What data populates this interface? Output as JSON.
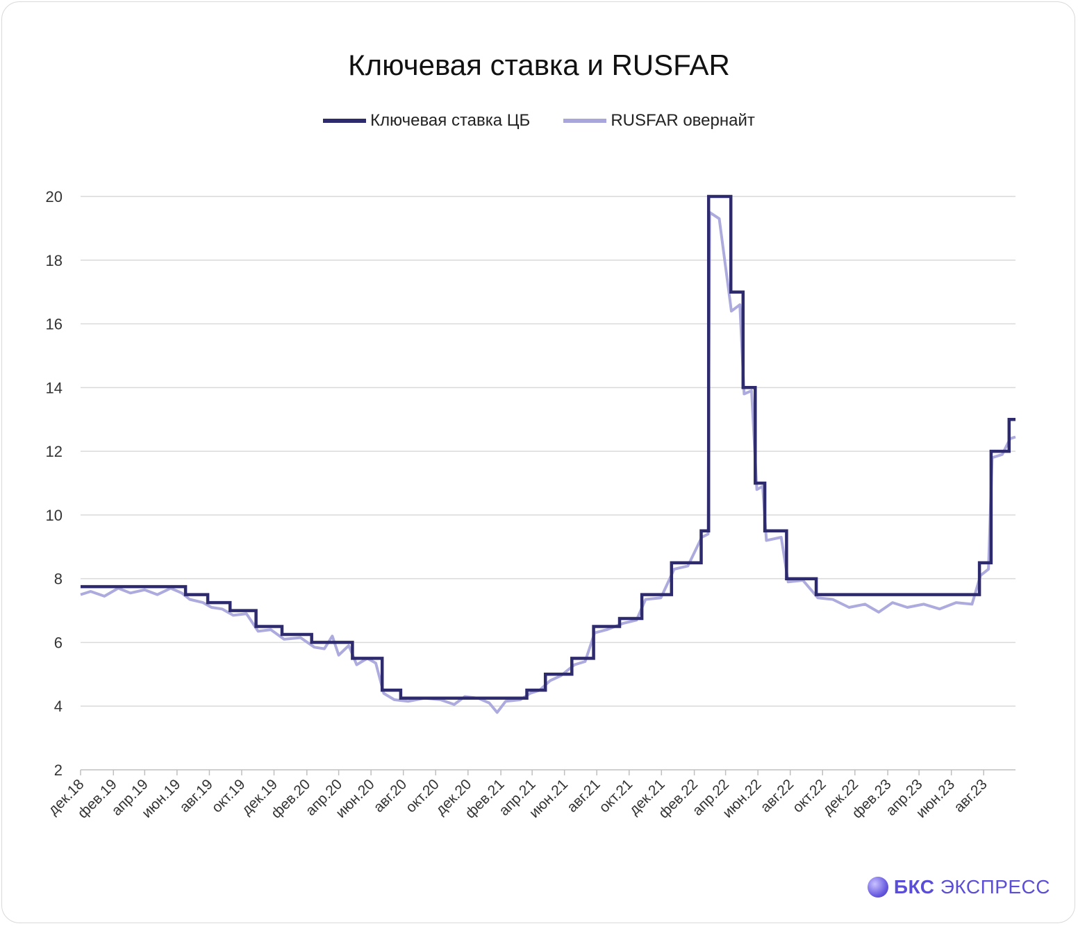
{
  "brand": {
    "bold": "БКС",
    "rest": " ЭКСПРЕСС"
  },
  "chart_data": {
    "type": "line",
    "title": "Ключевая ставка и RUSFAR",
    "ylim": [
      2,
      20
    ],
    "yticks": [
      2,
      4,
      6,
      8,
      10,
      12,
      14,
      16,
      18,
      20
    ],
    "grid": true,
    "legend_position": "top",
    "x_range": [
      "2018-12-01",
      "2023-09-30"
    ],
    "x_tick_labels": [
      "дек.18",
      "фев.19",
      "апр.19",
      "июн.19",
      "авг.19",
      "окт.19",
      "дек.19",
      "фев.20",
      "апр.20",
      "июн.20",
      "авг.20",
      "окт.20",
      "дек.20",
      "фев.21",
      "апр.21",
      "июн.21",
      "авг.21",
      "окт.21",
      "дек.21",
      "фев.22",
      "апр.22",
      "июн.22",
      "авг.22",
      "окт.22",
      "дек.22",
      "фев.23",
      "апр.23",
      "июн.23",
      "авг.23"
    ],
    "series": [
      {
        "name": "Ключевая ставка ЦБ",
        "color": "#2e2a6e",
        "points": [
          [
            "2018-12-01",
            7.75
          ],
          [
            "2019-06-17",
            7.5
          ],
          [
            "2019-07-29",
            7.25
          ],
          [
            "2019-09-09",
            7.0
          ],
          [
            "2019-10-28",
            6.5
          ],
          [
            "2019-12-16",
            6.25
          ],
          [
            "2020-02-10",
            6.0
          ],
          [
            "2020-04-27",
            5.5
          ],
          [
            "2020-06-22",
            4.5
          ],
          [
            "2020-07-27",
            4.25
          ],
          [
            "2021-03-22",
            4.5
          ],
          [
            "2021-04-26",
            5.0
          ],
          [
            "2021-06-15",
            5.5
          ],
          [
            "2021-07-26",
            6.5
          ],
          [
            "2021-09-13",
            6.75
          ],
          [
            "2021-10-25",
            7.5
          ],
          [
            "2021-12-20",
            8.5
          ],
          [
            "2022-02-14",
            9.5
          ],
          [
            "2022-02-28",
            20.0
          ],
          [
            "2022-04-11",
            17.0
          ],
          [
            "2022-05-04",
            14.0
          ],
          [
            "2022-05-27",
            11.0
          ],
          [
            "2022-06-14",
            9.5
          ],
          [
            "2022-07-25",
            8.0
          ],
          [
            "2022-09-19",
            7.5
          ],
          [
            "2023-07-24",
            8.5
          ],
          [
            "2023-08-15",
            12.0
          ],
          [
            "2023-09-18",
            13.0
          ],
          [
            "2023-09-30",
            13.0
          ]
        ]
      },
      {
        "name": "RUSFAR овернайт",
        "color": "#a9a6dc",
        "points": [
          [
            "2018-12-01",
            7.5
          ],
          [
            "2018-12-20",
            7.6
          ],
          [
            "2019-01-15",
            7.45
          ],
          [
            "2019-02-10",
            7.7
          ],
          [
            "2019-03-05",
            7.55
          ],
          [
            "2019-04-01",
            7.65
          ],
          [
            "2019-04-25",
            7.5
          ],
          [
            "2019-05-20",
            7.7
          ],
          [
            "2019-06-10",
            7.55
          ],
          [
            "2019-06-25",
            7.35
          ],
          [
            "2019-07-20",
            7.25
          ],
          [
            "2019-08-05",
            7.1
          ],
          [
            "2019-08-25",
            7.05
          ],
          [
            "2019-09-15",
            6.85
          ],
          [
            "2019-10-10",
            6.9
          ],
          [
            "2019-11-01",
            6.35
          ],
          [
            "2019-11-25",
            6.4
          ],
          [
            "2019-12-20",
            6.1
          ],
          [
            "2020-01-20",
            6.15
          ],
          [
            "2020-02-15",
            5.85
          ],
          [
            "2020-03-05",
            5.8
          ],
          [
            "2020-03-20",
            6.2
          ],
          [
            "2020-04-01",
            5.6
          ],
          [
            "2020-04-20",
            5.9
          ],
          [
            "2020-05-05",
            5.3
          ],
          [
            "2020-05-25",
            5.5
          ],
          [
            "2020-06-10",
            5.35
          ],
          [
            "2020-06-25",
            4.4
          ],
          [
            "2020-07-15",
            4.2
          ],
          [
            "2020-08-10",
            4.15
          ],
          [
            "2020-09-10",
            4.25
          ],
          [
            "2020-10-10",
            4.2
          ],
          [
            "2020-11-05",
            4.05
          ],
          [
            "2020-11-25",
            4.3
          ],
          [
            "2020-12-20",
            4.25
          ],
          [
            "2021-01-10",
            4.1
          ],
          [
            "2021-01-25",
            3.8
          ],
          [
            "2021-02-10",
            4.15
          ],
          [
            "2021-03-10",
            4.2
          ],
          [
            "2021-03-28",
            4.4
          ],
          [
            "2021-04-15",
            4.5
          ],
          [
            "2021-05-05",
            4.8
          ],
          [
            "2021-05-25",
            4.95
          ],
          [
            "2021-06-20",
            5.3
          ],
          [
            "2021-07-10",
            5.4
          ],
          [
            "2021-07-28",
            6.3
          ],
          [
            "2021-08-20",
            6.4
          ],
          [
            "2021-09-20",
            6.6
          ],
          [
            "2021-10-15",
            6.7
          ],
          [
            "2021-11-01",
            7.35
          ],
          [
            "2021-11-30",
            7.4
          ],
          [
            "2021-12-25",
            8.3
          ],
          [
            "2022-01-20",
            8.4
          ],
          [
            "2022-02-15",
            9.3
          ],
          [
            "2022-02-27",
            9.4
          ],
          [
            "2022-03-02",
            19.5
          ],
          [
            "2022-03-20",
            19.3
          ],
          [
            "2022-04-12",
            16.4
          ],
          [
            "2022-04-28",
            16.6
          ],
          [
            "2022-05-06",
            13.8
          ],
          [
            "2022-05-20",
            13.9
          ],
          [
            "2022-05-30",
            10.8
          ],
          [
            "2022-06-10",
            10.9
          ],
          [
            "2022-06-17",
            9.2
          ],
          [
            "2022-07-15",
            9.3
          ],
          [
            "2022-07-28",
            7.9
          ],
          [
            "2022-08-25",
            7.95
          ],
          [
            "2022-09-22",
            7.4
          ],
          [
            "2022-10-20",
            7.35
          ],
          [
            "2022-11-20",
            7.1
          ],
          [
            "2022-12-20",
            7.2
          ],
          [
            "2023-01-15",
            6.95
          ],
          [
            "2023-02-10",
            7.25
          ],
          [
            "2023-03-10",
            7.1
          ],
          [
            "2023-04-10",
            7.2
          ],
          [
            "2023-05-10",
            7.05
          ],
          [
            "2023-06-10",
            7.25
          ],
          [
            "2023-07-10",
            7.2
          ],
          [
            "2023-07-26",
            8.1
          ],
          [
            "2023-08-10",
            8.3
          ],
          [
            "2023-08-17",
            11.8
          ],
          [
            "2023-09-05",
            11.9
          ],
          [
            "2023-09-20",
            12.4
          ],
          [
            "2023-09-30",
            12.45
          ]
        ]
      }
    ]
  }
}
